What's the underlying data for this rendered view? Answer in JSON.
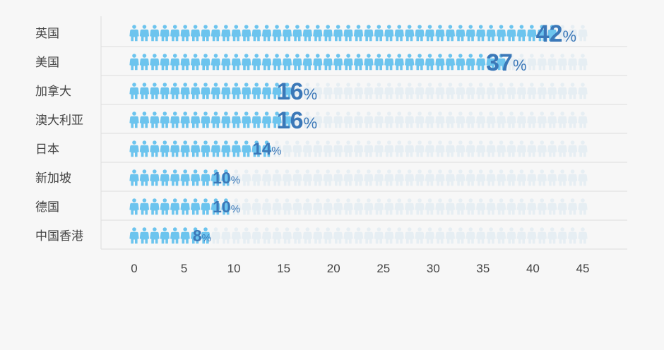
{
  "chart_data": {
    "type": "bar",
    "categories": [
      "英国",
      "美国",
      "加拿大",
      "澳大利亚",
      "日本",
      "新加坡",
      "德国",
      "中国香港"
    ],
    "values": [
      42,
      37,
      16,
      16,
      14,
      10,
      10,
      8
    ],
    "value_suffix": "%",
    "xticks": [
      0,
      5,
      10,
      15,
      20,
      25,
      30,
      35,
      40,
      45
    ],
    "xlim": [
      0,
      45
    ],
    "icons_total": 45,
    "icon": "person-icon",
    "colors": {
      "filled": "#6cc4ee",
      "empty": "#e6eef3",
      "label": "#3b78b8",
      "grid": "#dddddd"
    }
  }
}
